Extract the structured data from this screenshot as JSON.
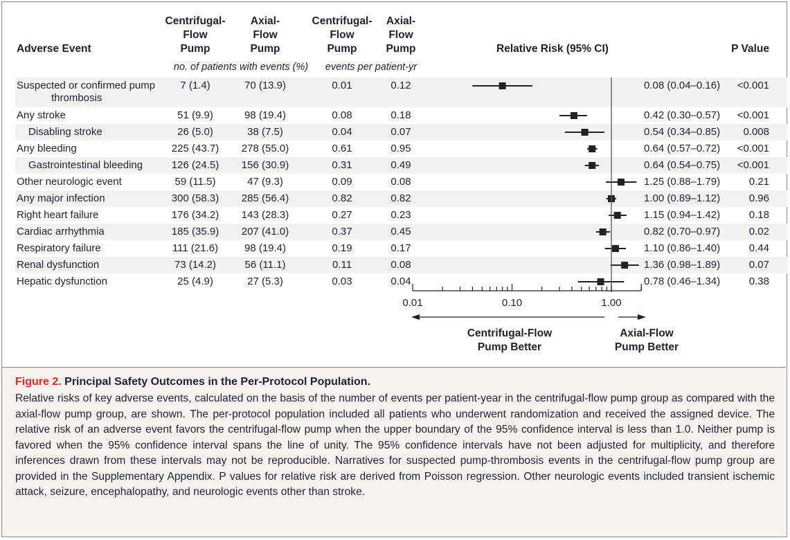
{
  "headers": {
    "adverse_event": "Adverse Event",
    "centrifugal_count": [
      "Centrifugal-",
      "Flow",
      "Pump"
    ],
    "axial_count": [
      "Axial-",
      "Flow",
      "Pump"
    ],
    "centrifugal_rate": [
      "Centrifugal-",
      "Flow",
      "Pump"
    ],
    "axial_rate": [
      "Axial-",
      "Flow",
      "Pump"
    ],
    "relative_risk": "Relative Risk (95% CI)",
    "p_value": "P Value",
    "count_units": "no. of patients with events (%)",
    "rate_units": "events per patient-yr"
  },
  "chart_data": {
    "type": "forest",
    "x_scale": "log",
    "xlim": [
      0.01,
      2.0
    ],
    "x_ticks": [
      "0.01",
      "0.10",
      "1.00"
    ],
    "reference_line": 1.0,
    "left_label": [
      "Centrifugal-Flow",
      "Pump Better"
    ],
    "right_label": [
      "Axial-Flow",
      "Pump Better"
    ],
    "rows": [
      {
        "event": "Suspected or confirmed pump",
        "event_line2": "thrombosis",
        "indent": false,
        "centrifugal_n": "7 (1.4)",
        "axial_n": "70 (13.9)",
        "centrifugal_rate": "0.01",
        "axial_rate": "0.12",
        "rr": 0.08,
        "lo": 0.04,
        "hi": 0.16,
        "rr_text": "0.08 (0.04–0.16)",
        "p": "<0.001"
      },
      {
        "event": "Any stroke",
        "indent": false,
        "centrifugal_n": "51 (9.9)",
        "axial_n": "98 (19.4)",
        "centrifugal_rate": "0.08",
        "axial_rate": "0.18",
        "rr": 0.42,
        "lo": 0.3,
        "hi": 0.57,
        "rr_text": "0.42 (0.30–0.57)",
        "p": "<0.001"
      },
      {
        "event": "Disabling stroke",
        "indent": true,
        "centrifugal_n": "26 (5.0)",
        "axial_n": "38 (7.5)",
        "centrifugal_rate": "0.04",
        "axial_rate": "0.07",
        "rr": 0.54,
        "lo": 0.34,
        "hi": 0.85,
        "rr_text": "0.54 (0.34–0.85)",
        "p": "0.008"
      },
      {
        "event": "Any bleeding",
        "indent": false,
        "centrifugal_n": "225 (43.7)",
        "axial_n": "278 (55.0)",
        "centrifugal_rate": "0.61",
        "axial_rate": "0.95",
        "rr": 0.64,
        "lo": 0.57,
        "hi": 0.72,
        "rr_text": "0.64 (0.57–0.72)",
        "p": "<0.001"
      },
      {
        "event": "Gastrointestinal bleeding",
        "indent": true,
        "centrifugal_n": "126 (24.5)",
        "axial_n": "156 (30.9)",
        "centrifugal_rate": "0.31",
        "axial_rate": "0.49",
        "rr": 0.64,
        "lo": 0.54,
        "hi": 0.75,
        "rr_text": "0.64 (0.54–0.75)",
        "p": "<0.001"
      },
      {
        "event": "Other neurologic event",
        "indent": false,
        "centrifugal_n": "59 (11.5)",
        "axial_n": "47 (9.3)",
        "centrifugal_rate": "0.09",
        "axial_rate": "0.08",
        "rr": 1.25,
        "lo": 0.88,
        "hi": 1.79,
        "rr_text": "1.25 (0.88–1.79)",
        "p": "0.21"
      },
      {
        "event": "Any major infection",
        "indent": false,
        "centrifugal_n": "300 (58.3)",
        "axial_n": "285 (56.4)",
        "centrifugal_rate": "0.82",
        "axial_rate": "0.82",
        "rr": 1.0,
        "lo": 0.89,
        "hi": 1.12,
        "rr_text": "1.00 (0.89–1.12)",
        "p": "0.96"
      },
      {
        "event": "Right heart failure",
        "indent": false,
        "centrifugal_n": "176 (34.2)",
        "axial_n": "143 (28.3)",
        "centrifugal_rate": "0.27",
        "axial_rate": "0.23",
        "rr": 1.15,
        "lo": 0.94,
        "hi": 1.42,
        "rr_text": "1.15 (0.94–1.42)",
        "p": "0.18"
      },
      {
        "event": "Cardiac arrhythmia",
        "indent": false,
        "centrifugal_n": "185 (35.9)",
        "axial_n": "207 (41.0)",
        "centrifugal_rate": "0.37",
        "axial_rate": "0.45",
        "rr": 0.82,
        "lo": 0.7,
        "hi": 0.97,
        "rr_text": "0.82 (0.70–0.97)",
        "p": "0.02"
      },
      {
        "event": "Respiratory failure",
        "indent": false,
        "centrifugal_n": "111 (21.6)",
        "axial_n": "98 (19.4)",
        "centrifugal_rate": "0.19",
        "axial_rate": "0.17",
        "rr": 1.1,
        "lo": 0.86,
        "hi": 1.4,
        "rr_text": "1.10 (0.86–1.40)",
        "p": "0.44"
      },
      {
        "event": "Renal dysfunction",
        "indent": false,
        "centrifugal_n": "73 (14.2)",
        "axial_n": "56 (11.1)",
        "centrifugal_rate": "0.11",
        "axial_rate": "0.08",
        "rr": 1.36,
        "lo": 0.98,
        "hi": 1.89,
        "rr_text": "1.36 (0.98–1.89)",
        "p": "0.07"
      },
      {
        "event": "Hepatic dysfunction",
        "indent": false,
        "centrifugal_n": "25 (4.9)",
        "axial_n": "27 (5.3)",
        "centrifugal_rate": "0.03",
        "axial_rate": "0.04",
        "rr": 0.78,
        "lo": 0.46,
        "hi": 1.34,
        "rr_text": "0.78 (0.46–1.34)",
        "p": "0.38"
      }
    ]
  },
  "caption": {
    "figure_label": "Figure 2.",
    "title": "Principal Safety Outcomes in the Per-Protocol Population.",
    "body": "Relative risks of key adverse events, calculated on the basis of the number of events per patient-year in the centrifugal-flow pump group as compared with the axial-flow pump group, are shown. The per-protocol population included all patients who underwent randomization and received the assigned device. The relative risk of an adverse event favors the centrifugal-flow pump when the upper boundary of the 95% confidence interval is less than 1.0. Neither pump is favored when the 95% confidence interval spans the line of unity. The 95% confidence intervals have not been adjusted for multiplicity, and therefore inferences drawn from these intervals may not be reproducible. Narratives for suspected pump-thrombosis events in the centrifugal-flow pump group are provided in the Supplementary Appendix. P values for relative risk are derived from Poisson regression. Other neurologic events included transient ischemic attack, seizure, encephalopathy, and neurologic events other than stroke."
  },
  "colors": {
    "text": "#1f2030",
    "band": "#f2f2f2",
    "caption_bg": "#f7f2ef",
    "figure_label": "#e0261f",
    "marker": "#222222"
  }
}
